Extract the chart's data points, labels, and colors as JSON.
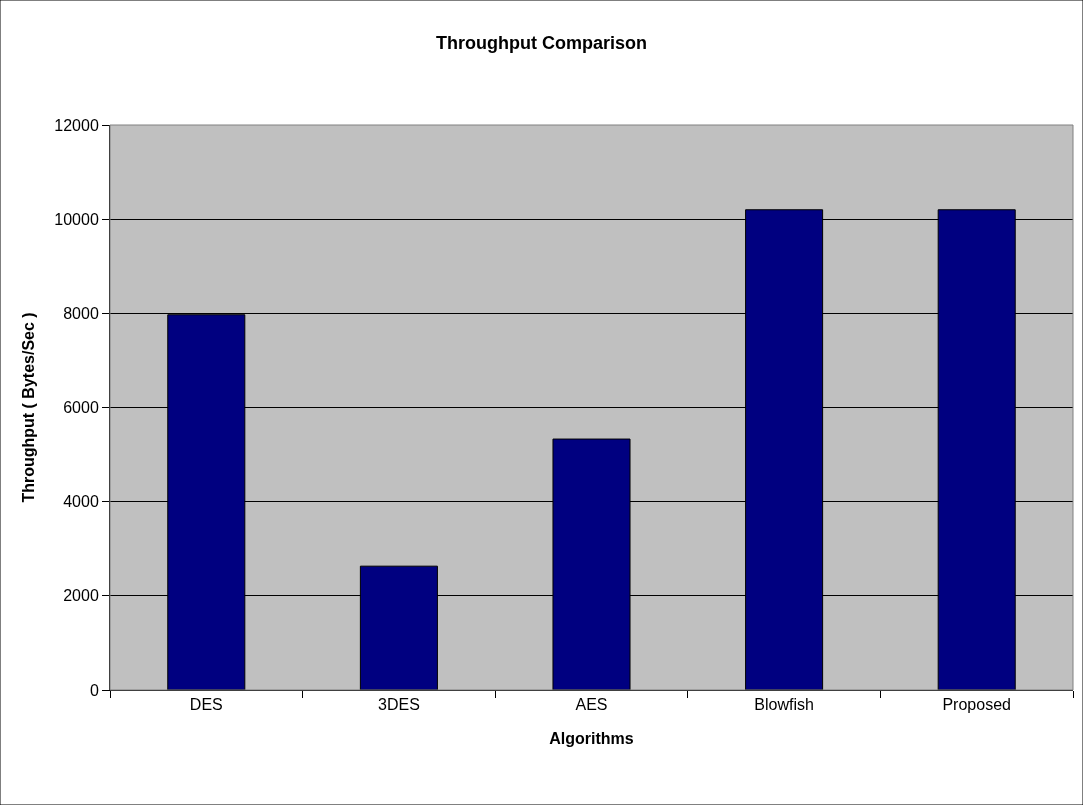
{
  "chart_data": {
    "type": "bar",
    "title": "Throughput Comparison",
    "xlabel": "Algorithms",
    "ylabel": "Throughput ( Bytes/Sec )",
    "categories": [
      "DES",
      "3DES",
      "AES",
      "Blowfish",
      "Proposed"
    ],
    "values": [
      7970,
      2630,
      5330,
      10200,
      10200
    ],
    "color": "#000080",
    "ylim": [
      0,
      12000
    ],
    "yticks": [
      0,
      2000,
      4000,
      6000,
      8000,
      10000,
      12000
    ],
    "grid": "y",
    "legend": false
  }
}
